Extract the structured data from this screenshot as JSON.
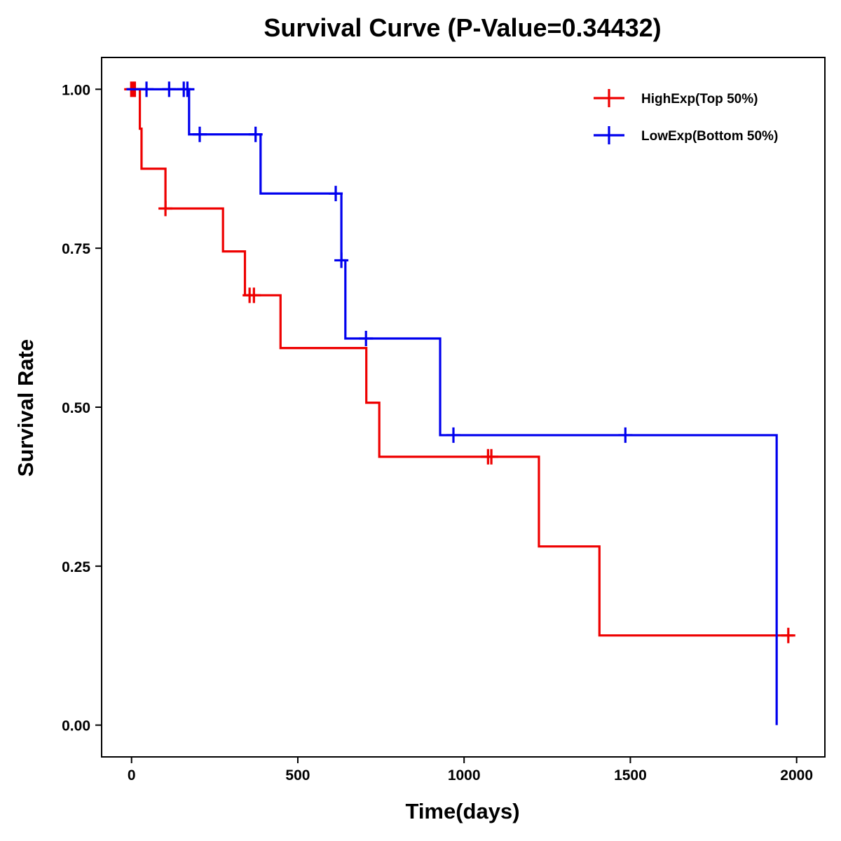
{
  "chart_data": {
    "type": "line",
    "subtype": "kaplan-meier-step",
    "title": "Survival Curve (P-Value=0.34432)",
    "xlabel": "Time(days)",
    "ylabel": "Survival Rate",
    "xlim": [
      -90,
      2085
    ],
    "ylim": [
      -0.05,
      1.05
    ],
    "x_ticks": [
      0,
      500,
      1000,
      1500,
      2000
    ],
    "x_tick_labels": [
      "0",
      "500",
      "1000",
      "1500",
      "2000"
    ],
    "y_ticks": [
      0,
      0.25,
      0.5,
      0.75,
      1.0
    ],
    "y_tick_labels": [
      "0.00",
      "0.25",
      "0.50",
      "0.75",
      "1.00"
    ],
    "grid": false,
    "legend_position": "top-right",
    "series": [
      {
        "name": "HighExp(Top 50%)",
        "color": "#ee0000",
        "steps": [
          [
            -15,
            1.0
          ],
          [
            25,
            0.938
          ],
          [
            30,
            0.875
          ],
          [
            102,
            0.8125
          ],
          [
            275,
            0.745
          ],
          [
            341,
            0.676
          ],
          [
            448,
            0.593
          ],
          [
            706,
            0.507
          ],
          [
            745,
            0.422
          ],
          [
            1225,
            0.281
          ],
          [
            1407,
            0.141
          ],
          [
            1990,
            0.141
          ]
        ],
        "censor_marks": [
          [
            -1,
            1.0
          ],
          [
            5,
            1.0
          ],
          [
            10,
            1.0
          ],
          [
            102,
            0.8125
          ],
          [
            355,
            0.676
          ],
          [
            368,
            0.676
          ],
          [
            1072,
            0.422
          ],
          [
            1082,
            0.422
          ],
          [
            1975,
            0.141
          ]
        ]
      },
      {
        "name": "LowExp(Bottom 50%)",
        "color": "#0000ee",
        "steps": [
          [
            -15,
            1.0
          ],
          [
            173,
            0.929
          ],
          [
            388,
            0.836
          ],
          [
            631,
            0.731
          ],
          [
            643,
            0.608
          ],
          [
            928,
            0.456
          ],
          [
            1940,
            0.0
          ]
        ],
        "censor_marks": [
          [
            45,
            1.0
          ],
          [
            113,
            1.0
          ],
          [
            157,
            1.0
          ],
          [
            168,
            1.0
          ],
          [
            205,
            0.929
          ],
          [
            373,
            0.929
          ],
          [
            614,
            0.836
          ],
          [
            631,
            0.731
          ],
          [
            705,
            0.608
          ],
          [
            968,
            0.456
          ],
          [
            1485,
            0.456
          ]
        ]
      }
    ]
  }
}
